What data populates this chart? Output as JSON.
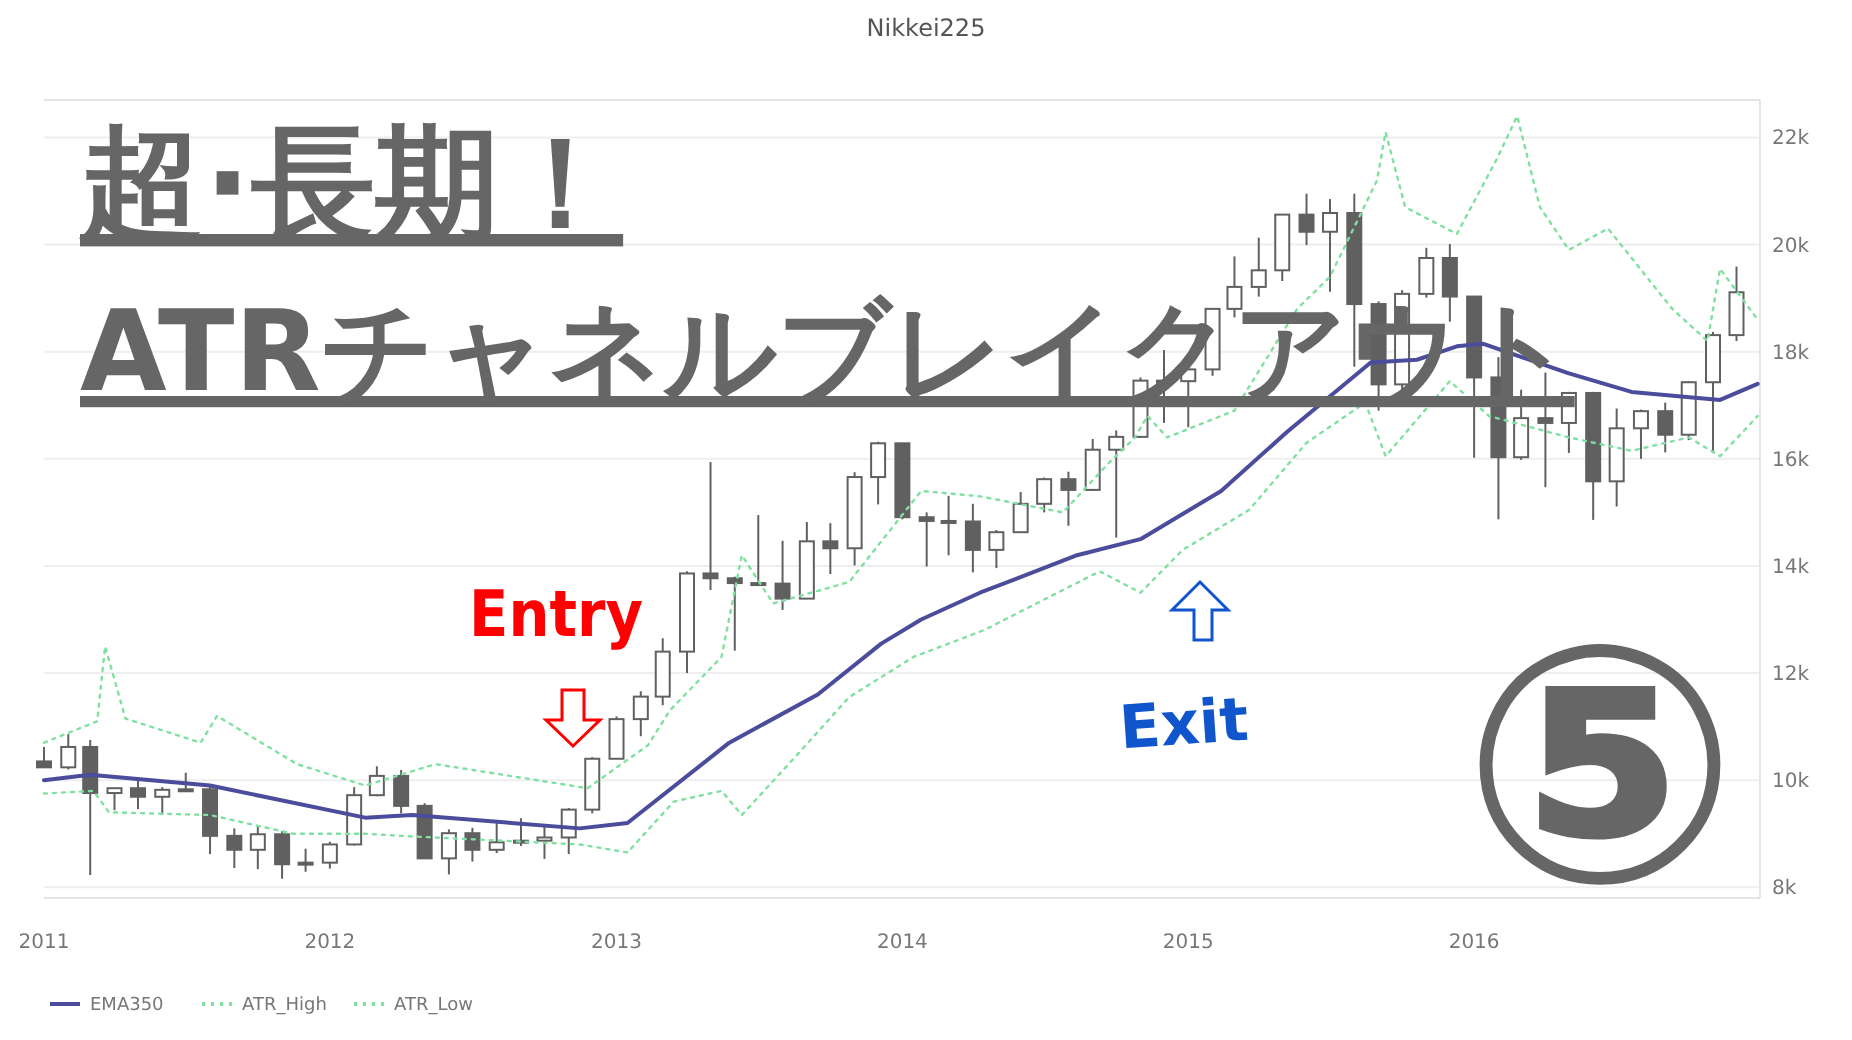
{
  "chart_data": {
    "type": "candlestick",
    "title": "Nikkei225",
    "color": "#606060",
    "x": [
      "2011-01",
      "2011-02",
      "2011-03",
      "2011-04",
      "2011-05",
      "2011-06",
      "2011-07",
      "2011-08",
      "2011-09",
      "2011-10",
      "2011-11",
      "2011-12",
      "2012-01",
      "2012-02",
      "2012-03",
      "2012-04",
      "2012-05",
      "2012-06",
      "2012-07",
      "2012-08",
      "2012-09",
      "2012-10",
      "2012-11",
      "2012-12",
      "2013-01",
      "2013-02",
      "2013-03",
      "2013-04",
      "2013-05",
      "2013-06",
      "2013-07",
      "2013-08",
      "2013-09",
      "2013-10",
      "2013-11",
      "2013-12",
      "2014-01",
      "2014-02",
      "2014-03",
      "2014-04",
      "2014-05",
      "2014-06",
      "2014-07",
      "2014-08",
      "2014-09",
      "2014-10",
      "2014-11",
      "2014-12",
      "2015-01",
      "2015-02",
      "2015-03",
      "2015-04",
      "2015-05",
      "2015-06",
      "2015-07",
      "2015-08",
      "2015-09",
      "2015-10",
      "2015-11",
      "2015-12",
      "2016-01",
      "2016-02",
      "2016-03",
      "2016-04",
      "2016-05",
      "2016-06",
      "2016-07",
      "2016-08",
      "2016-09",
      "2016-10",
      "2016-11",
      "2016-12"
    ],
    "ohlc": [
      [
        10350,
        10620,
        10240,
        10240
      ],
      [
        10240,
        10860,
        10200,
        10620
      ],
      [
        10620,
        10750,
        8230,
        9760
      ],
      [
        9760,
        9850,
        9440,
        9850
      ],
      [
        9850,
        10020,
        9460,
        9690
      ],
      [
        9690,
        9870,
        9350,
        9820
      ],
      [
        9820,
        10140,
        9780,
        9830
      ],
      [
        9830,
        9900,
        8620,
        8960
      ],
      [
        8960,
        9100,
        8360,
        8700
      ],
      [
        8700,
        9150,
        8340,
        8990
      ],
      [
        8990,
        9050,
        8160,
        8430
      ],
      [
        8430,
        8720,
        8290,
        8460
      ],
      [
        8460,
        8850,
        8350,
        8800
      ],
      [
        8800,
        9870,
        8780,
        9720
      ],
      [
        9720,
        10260,
        9700,
        10080
      ],
      [
        10080,
        10190,
        9380,
        9520
      ],
      [
        9520,
        9570,
        8530,
        8540
      ],
      [
        8540,
        9080,
        8240,
        9010
      ],
      [
        9010,
        9110,
        8480,
        8700
      ],
      [
        8700,
        9220,
        8640,
        8840
      ],
      [
        8840,
        9290,
        8770,
        8870
      ],
      [
        8870,
        9180,
        8530,
        8930
      ],
      [
        8930,
        9480,
        8620,
        9450
      ],
      [
        9450,
        10430,
        9380,
        10400
      ],
      [
        10400,
        11190,
        10400,
        11140
      ],
      [
        11140,
        11660,
        10820,
        11560
      ],
      [
        11560,
        12650,
        11400,
        12400
      ],
      [
        12400,
        13900,
        12000,
        13860
      ],
      [
        13860,
        15940,
        13550,
        13770
      ],
      [
        13770,
        13800,
        12420,
        13680
      ],
      [
        13680,
        14950,
        13650,
        13670
      ],
      [
        13670,
        14470,
        13180,
        13390
      ],
      [
        13390,
        14820,
        13380,
        14460
      ],
      [
        14460,
        14800,
        13850,
        14330
      ],
      [
        14330,
        15750,
        14010,
        15660
      ],
      [
        15660,
        16320,
        15150,
        16290
      ],
      [
        16290,
        16290,
        14870,
        14910
      ],
      [
        14910,
        15000,
        13990,
        14840
      ],
      [
        14840,
        15310,
        14200,
        14830
      ],
      [
        14830,
        15160,
        13880,
        14300
      ],
      [
        14300,
        14670,
        13960,
        14630
      ],
      [
        14630,
        15380,
        14620,
        15160
      ],
      [
        15160,
        15650,
        15000,
        15620
      ],
      [
        15620,
        15760,
        14750,
        15420
      ],
      [
        15420,
        16370,
        15400,
        16170
      ],
      [
        16170,
        16530,
        14530,
        16410
      ],
      [
        16410,
        17520,
        16400,
        17460
      ],
      [
        17460,
        18030,
        16670,
        17450
      ],
      [
        17450,
        17880,
        16590,
        17670
      ],
      [
        17670,
        18800,
        17550,
        18800
      ],
      [
        18800,
        19780,
        18640,
        19210
      ],
      [
        19210,
        20130,
        19030,
        19520
      ],
      [
        19520,
        20570,
        19320,
        20560
      ],
      [
        20560,
        20950,
        19990,
        20240
      ],
      [
        20240,
        20850,
        19120,
        20590
      ],
      [
        20590,
        20950,
        17720,
        18890
      ],
      [
        18890,
        18940,
        16900,
        17390
      ],
      [
        17390,
        19150,
        17060,
        19080
      ],
      [
        19080,
        19940,
        19010,
        19750
      ],
      [
        19750,
        20010,
        18560,
        19030
      ],
      [
        19030,
        19030,
        16020,
        17520
      ],
      [
        17520,
        17900,
        14870,
        16030
      ],
      [
        16030,
        17290,
        15980,
        16760
      ],
      [
        16760,
        17610,
        15470,
        16670
      ],
      [
        16670,
        17250,
        16110,
        17230
      ],
      [
        17230,
        17250,
        14860,
        15580
      ],
      [
        15580,
        16940,
        15110,
        16570
      ],
      [
        16570,
        16920,
        16000,
        16890
      ],
      [
        16890,
        17050,
        16120,
        16450
      ],
      [
        16450,
        17450,
        16350,
        17430
      ],
      [
        17430,
        18370,
        16110,
        18310
      ],
      [
        18310,
        19590,
        18200,
        19110
      ]
    ],
    "series": [
      {
        "name": "EMA350",
        "type": "line",
        "color": "#4c4c9c",
        "line_style": "solid",
        "x": [
          "2011-01-01",
          "2011-03-01",
          "2011-08-01",
          "2012-02-15",
          "2012-04-15",
          "2012-11-15",
          "2013-01-15",
          "2013-05-25",
          "2013-09-15",
          "2013-12-05",
          "2014-01-25",
          "2014-04-10",
          "2014-08-12",
          "2014-11-01",
          "2015-02-12",
          "2015-05-07",
          "2015-08-22",
          "2015-10-20",
          "2015-12-10",
          "2016-01-12",
          "2016-04-30",
          "2016-07-20",
          "2016-11-10",
          "2016-12-28"
        ],
        "values": [
          10000,
          10100,
          9900,
          9300,
          9350,
          9100,
          9200,
          10700,
          11600,
          12550,
          13000,
          13500,
          14200,
          14500,
          15400,
          16500,
          17800,
          17850,
          18100,
          18150,
          17600,
          17250,
          17100,
          17400
        ]
      },
      {
        "name": "ATR_High",
        "type": "line",
        "color": "#7fe0a0",
        "line_style": "dotted",
        "x": [
          "2011-01-01",
          "2011-03-10",
          "2011-03-20",
          "2011-04-15",
          "2011-07-20",
          "2011-08-10",
          "2011-11-20",
          "2012-02-15",
          "2012-05-15",
          "2012-11-25",
          "2013-02-10",
          "2013-03-10",
          "2013-05-15",
          "2013-06-10",
          "2013-07-20",
          "2013-10-25",
          "2014-01-25",
          "2014-04-10",
          "2014-07-25",
          "2014-09-20",
          "2014-10-25",
          "2014-11-10",
          "2014-12-05",
          "2015-03-01",
          "2015-05-20",
          "2015-07-01",
          "2015-08-30",
          "2015-09-10",
          "2015-10-05",
          "2015-12-10",
          "2016-01-30",
          "2016-02-25",
          "2016-03-25",
          "2016-05-01",
          "2016-06-20",
          "2016-09-10",
          "2016-10-25",
          "2016-11-10",
          "2016-12-28"
        ],
        "values": [
          10700,
          11100,
          12500,
          11150,
          10700,
          11200,
          10300,
          9900,
          10300,
          9850,
          10650,
          11300,
          12300,
          14200,
          13300,
          13700,
          15400,
          15300,
          15000,
          15900,
          16400,
          16800,
          16400,
          16900,
          18800,
          19400,
          21200,
          22100,
          20700,
          20200,
          21600,
          22400,
          20700,
          19900,
          20300,
          18800,
          18200,
          19550,
          18600
        ]
      },
      {
        "name": "ATR_Low",
        "type": "line",
        "color": "#7fe0a0",
        "line_style": "dotted",
        "x": [
          "2011-01-01",
          "2011-03-05",
          "2011-03-25",
          "2011-08-01",
          "2011-11-15",
          "2012-02-15",
          "2012-04-15",
          "2012-11-15",
          "2013-01-15",
          "2013-03-15",
          "2013-05-15",
          "2013-06-10",
          "2013-08-15",
          "2013-10-25",
          "2014-01-15",
          "2014-04-15",
          "2014-09-10",
          "2014-11-01",
          "2014-12-25",
          "2015-03-20",
          "2015-06-01",
          "2015-08-15",
          "2015-09-10",
          "2015-12-01",
          "2016-01-20",
          "2016-05-01",
          "2016-07-20",
          "2016-10-01",
          "2016-11-10",
          "2016-12-28"
        ],
        "values": [
          9750,
          9800,
          9400,
          9350,
          9000,
          9000,
          8950,
          8800,
          8650,
          9600,
          9800,
          9350,
          10400,
          11550,
          12300,
          12800,
          13900,
          13500,
          14300,
          15050,
          16300,
          17050,
          16050,
          17450,
          16800,
          16400,
          16150,
          16400,
          16050,
          16800
        ]
      }
    ],
    "xlim": [
      "2011-01-01",
      "2016-12-31"
    ],
    "xticks": [
      {
        "value": "2011-01-01",
        "label": "2011"
      },
      {
        "value": "2012-01-01",
        "label": "2012"
      },
      {
        "value": "2013-01-01",
        "label": "2013"
      },
      {
        "value": "2014-01-01",
        "label": "2014"
      },
      {
        "value": "2015-01-01",
        "label": "2015"
      },
      {
        "value": "2016-01-01",
        "label": "2016"
      }
    ],
    "ylim": [
      7800,
      22700
    ],
    "yticks": [
      {
        "value": 8000,
        "label": "8k"
      },
      {
        "value": 10000,
        "label": "10k"
      },
      {
        "value": 12000,
        "label": "12k"
      },
      {
        "value": 14000,
        "label": "14k"
      },
      {
        "value": 16000,
        "label": "16k"
      },
      {
        "value": 18000,
        "label": "18k"
      },
      {
        "value": 20000,
        "label": "20k"
      },
      {
        "value": 22000,
        "label": "22k"
      }
    ],
    "grid": "y",
    "legend": "bottom left",
    "annotations": [
      "超·長期！",
      "ATRチャネルブレイクアウト",
      "Entry",
      "Exit",
      "⑤"
    ]
  }
}
